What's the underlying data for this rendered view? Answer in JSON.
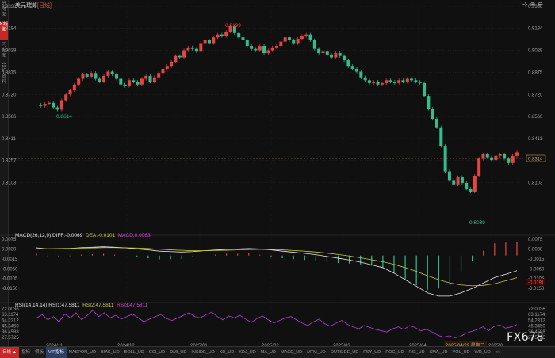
{
  "window": {
    "title": "美元瑞郎 [日线]",
    "title_main": "美元瑞郎",
    "title_tag": "[日线]"
  },
  "left_tabs": [
    {
      "label": "分时图",
      "active": false
    },
    {
      "label": "K线图",
      "active": true
    },
    {
      "label": "闪电图",
      "active": false
    },
    {
      "label": "合约资料",
      "active": false
    }
  ],
  "price_axis": [
    "0.9338",
    "0.9184",
    "0.9029",
    "0.8875",
    "0.8720",
    "0.8566",
    "0.8411",
    "0.8257",
    "0.8103"
  ],
  "current_price": "0.8314",
  "annotations": {
    "high": "0.9199",
    "low_left": "0.8614",
    "low_right": "0.8039"
  },
  "macd": {
    "legend": "MACD(26,12,9) DIFF:-0.0069",
    "dea": "DEA:-0.0101",
    "macd_val": "MACD:0.0063",
    "axis": [
      "0.0075",
      "0.0030",
      "-0.0015",
      "-0.0060",
      "-0.0105",
      "-0.0150"
    ],
    "current": "-0.0191"
  },
  "rsi": {
    "legend": "RSI(14,14,14) RSI1:47.5811",
    "rsi2": "RSI2:47.5811",
    "rsi3": "RSI3:47.5811",
    "axis": [
      "72.0036",
      "63.1174",
      "54.2312",
      "45.3450",
      "36.4588",
      "27.5725"
    ]
  },
  "dates": [
    "2024/11",
    "2024/12",
    "2025/01",
    "2025/02",
    "2025/03",
    "2025/04",
    "2025/0"
  ],
  "selected_date": "2025/04/29 星期二",
  "bottom_tabs": [
    {
      "label": "日线 ▲",
      "kind": "sel"
    },
    {
      "label": "指标",
      "kind": ""
    },
    {
      "label": "模板",
      "kind": ""
    },
    {
      "label": "VIP指标",
      "kind": "sel2"
    },
    {
      "label": "NASPON_UD",
      "kind": ""
    },
    {
      "label": "BIAS_UD",
      "kind": ""
    },
    {
      "label": "BOLL_UD",
      "kind": ""
    },
    {
      "label": "CCI_UD",
      "kind": ""
    },
    {
      "label": "DMI_UD",
      "kind": ""
    },
    {
      "label": "INSIDE_UD",
      "kind": ""
    },
    {
      "label": "KD_UD",
      "kind": ""
    },
    {
      "label": "KDJ_UD",
      "kind": ""
    },
    {
      "label": "MA_UD",
      "kind": ""
    },
    {
      "label": "MACD_UD",
      "kind": ""
    },
    {
      "label": "MTM_UD",
      "kind": ""
    },
    {
      "label": "OUTSIDE_UD",
      "kind": ""
    },
    {
      "label": "PSY_UD",
      "kind": ""
    },
    {
      "label": "ROC_UD",
      "kind": ""
    },
    {
      "label": "RSI_UD",
      "kind": ""
    },
    {
      "label": "SMA_UD",
      "kind": ""
    },
    {
      "label": "VOL_UD",
      "kind": ""
    },
    {
      "label": "WR_UD",
      "kind": ""
    },
    {
      "label": "<<",
      "kind": ""
    }
  ],
  "watermark": "FX678",
  "colors": {
    "up": "#e84343",
    "down": "#2fbf8f",
    "macd_diff": "#e8e8e8",
    "macd_dea": "#c9c93a",
    "rsi": "#b13fd6"
  },
  "price_series": [
    0.865,
    0.864,
    0.8655,
    0.8662,
    0.863,
    0.8614,
    0.868,
    0.872,
    0.875,
    0.879,
    0.883,
    0.886,
    0.8845,
    0.887,
    0.883,
    0.881,
    0.885,
    0.888,
    0.886,
    0.883,
    0.879,
    0.878,
    0.882,
    0.881,
    0.879,
    0.883,
    0.885,
    0.881,
    0.884,
    0.887,
    0.89,
    0.892,
    0.895,
    0.899,
    0.898,
    0.903,
    0.905,
    0.904,
    0.902,
    0.908,
    0.91,
    0.908,
    0.912,
    0.914,
    0.913,
    0.916,
    0.9199,
    0.915,
    0.912,
    0.91,
    0.906,
    0.904,
    0.903,
    0.906,
    0.901,
    0.903,
    0.905,
    0.906,
    0.909,
    0.912,
    0.91,
    0.908,
    0.911,
    0.913,
    0.914,
    0.91,
    0.904,
    0.901,
    0.902,
    0.9,
    0.898,
    0.901,
    0.899,
    0.896,
    0.892,
    0.89,
    0.888,
    0.884,
    0.882,
    0.88,
    0.881,
    0.879,
    0.88,
    0.882,
    0.881,
    0.88,
    0.882,
    0.881,
    0.883,
    0.882,
    0.881,
    0.88,
    0.871,
    0.862,
    0.855,
    0.849,
    0.836,
    0.818,
    0.812,
    0.809,
    0.814,
    0.81,
    0.806,
    0.8039,
    0.815,
    0.827,
    0.83,
    0.828,
    0.826,
    0.829,
    0.83,
    0.827,
    0.824,
    0.829,
    0.8314
  ],
  "macd_diff_series": [
    0.0035,
    0.003,
    0.003,
    0.0032,
    0.0036,
    0.0038,
    0.004,
    0.0038,
    0.0035,
    0.003,
    0.0026,
    0.002,
    0.0018,
    0.0016,
    0.0018,
    0.0022,
    0.0025,
    0.0028,
    0.003,
    0.0032,
    0.003,
    0.0026,
    0.002,
    0.0015,
    0.001,
    0.0004,
    -0.0004,
    -0.0012,
    -0.002,
    -0.003,
    -0.0042,
    -0.0055,
    -0.008,
    -0.011,
    -0.014,
    -0.017,
    -0.0185,
    -0.0185,
    -0.017,
    -0.015,
    -0.0125,
    -0.01,
    -0.0085,
    -0.0069
  ],
  "macd_dea_series": [
    0.003,
    0.0031,
    0.0032,
    0.0033,
    0.0034,
    0.0035,
    0.0036,
    0.0036,
    0.0035,
    0.0034,
    0.0032,
    0.0029,
    0.0026,
    0.0024,
    0.0022,
    0.0022,
    0.0023,
    0.0024,
    0.0026,
    0.0027,
    0.0028,
    0.0028,
    0.0026,
    0.0023,
    0.002,
    0.0016,
    0.0011,
    0.0005,
    -0.0002,
    -0.001,
    -0.0019,
    -0.0028,
    -0.004,
    -0.0055,
    -0.0072,
    -0.0092,
    -0.011,
    -0.0125,
    -0.0134,
    -0.0138,
    -0.0136,
    -0.0128,
    -0.0115,
    -0.0101
  ],
  "rsi_series": [
    58,
    63,
    55,
    60,
    52,
    64,
    58,
    66,
    55,
    62,
    70,
    60,
    66,
    58,
    62,
    56,
    60,
    64,
    58,
    52,
    56,
    60,
    63,
    57,
    54,
    58,
    62,
    66,
    60,
    58,
    63,
    67,
    60,
    55,
    61,
    58,
    62,
    56,
    51,
    57,
    61,
    55,
    50,
    54,
    58,
    60,
    55,
    50,
    46,
    52,
    56,
    49,
    45,
    50,
    54,
    48,
    44,
    41,
    46,
    43,
    40,
    38,
    36,
    41,
    44,
    40,
    46,
    43,
    38,
    40,
    36,
    31,
    28,
    30,
    27,
    29,
    34,
    37,
    40,
    44,
    38,
    45,
    47,
    42,
    44,
    47.58
  ]
}
